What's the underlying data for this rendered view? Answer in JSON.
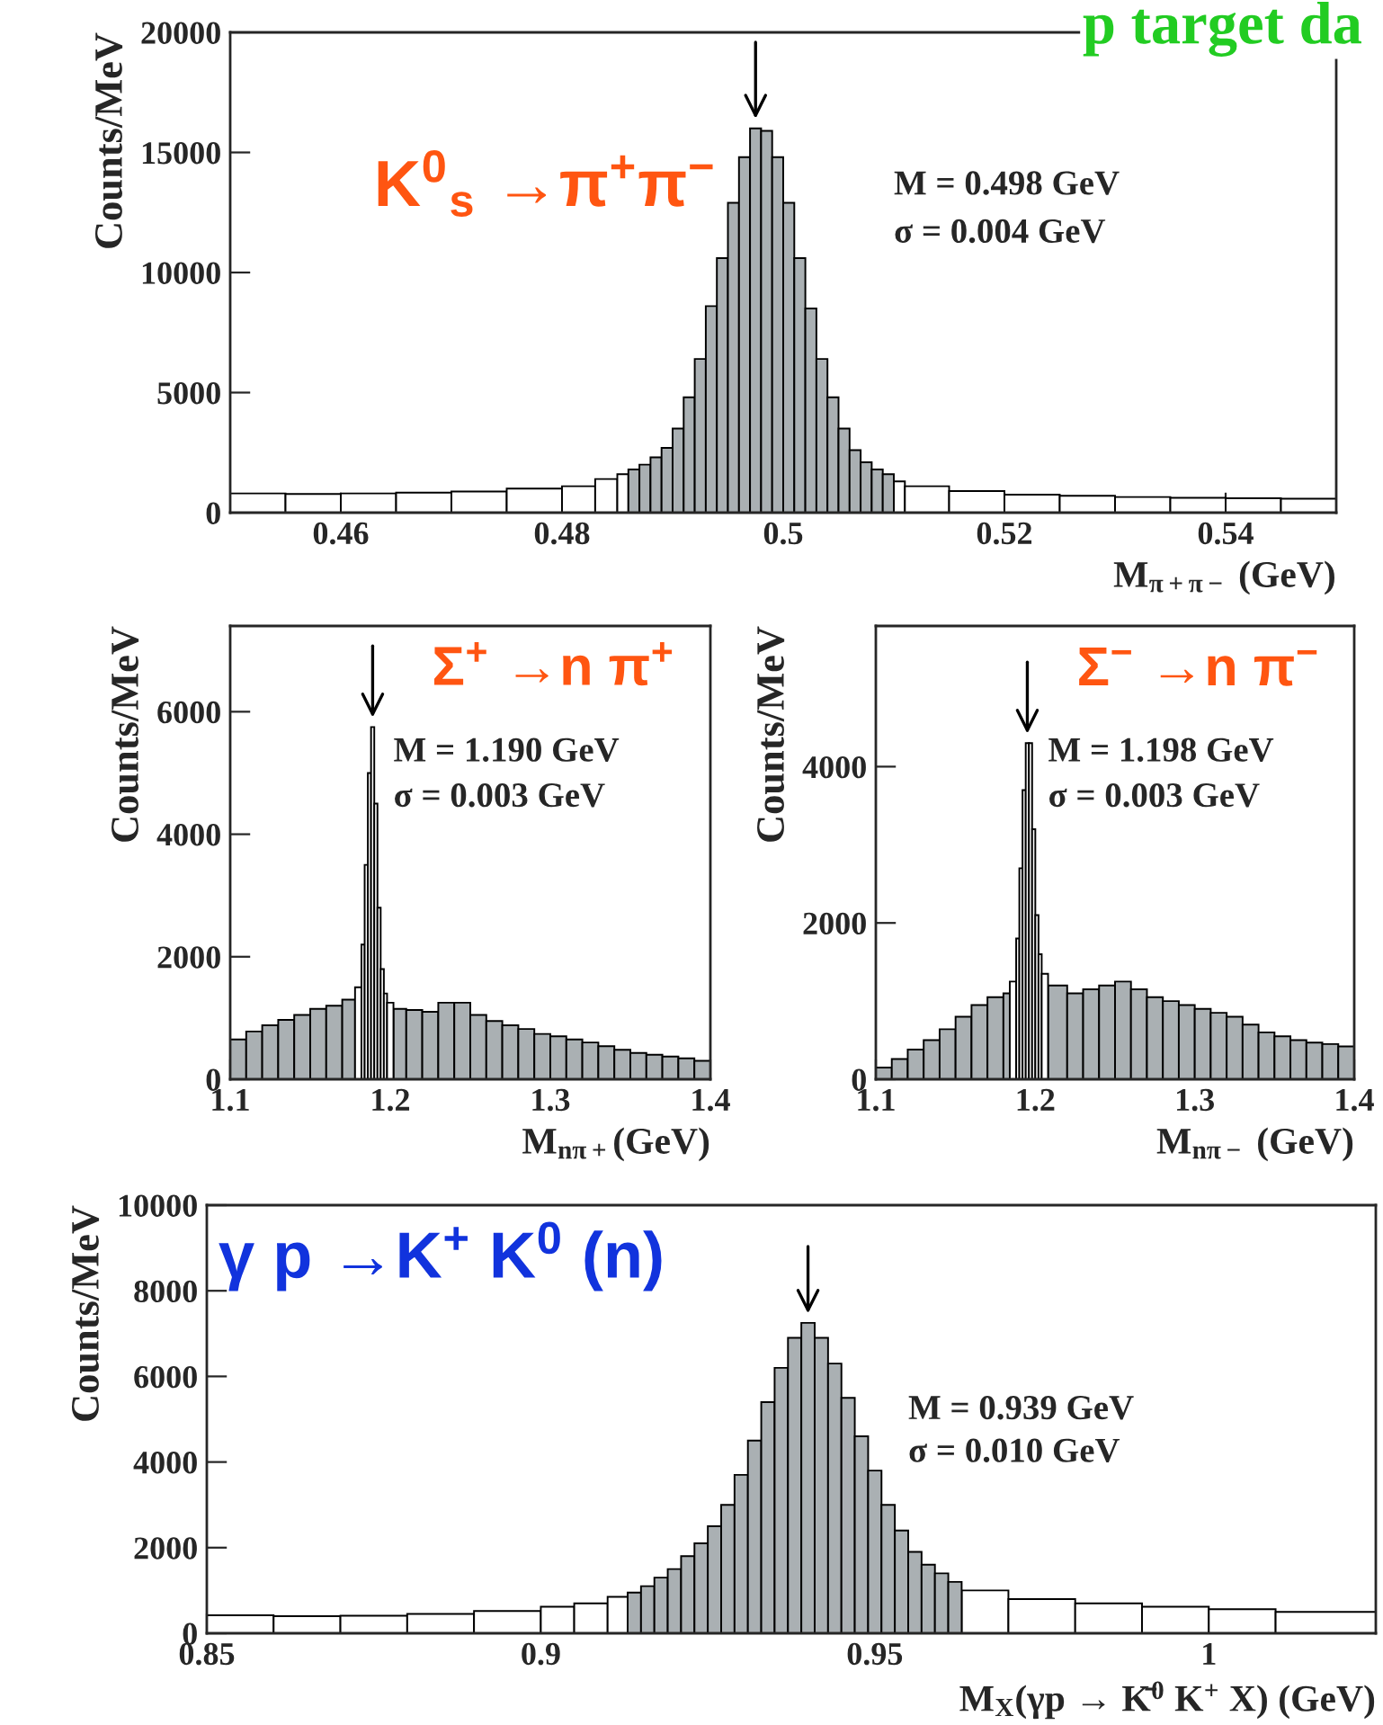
{
  "chart_data": [
    {
      "type": "histogram",
      "title": "p target da",
      "xlabel": "M$_{π+π−}$ (GeV)",
      "ylabel": "Counts/MeV",
      "bins": [
        0.45,
        0.455,
        0.46,
        0.465,
        0.47,
        0.475,
        0.48,
        0.483,
        0.485,
        0.486,
        0.487,
        0.488,
        0.489,
        0.49,
        0.491,
        0.492,
        0.493,
        0.494,
        0.495,
        0.496,
        0.497,
        0.498,
        0.499,
        0.5,
        0.501,
        0.502,
        0.503,
        0.504,
        0.505,
        0.506,
        0.507,
        0.508,
        0.509,
        0.51,
        0.511,
        0.515,
        0.52,
        0.525,
        0.53,
        0.535,
        0.54,
        0.545,
        0.55
      ],
      "series": [
        {
          "color": "#ffffff",
          "values": [
            800,
            780,
            800,
            830,
            880,
            1000,
            1100,
            1400,
            1600,
            null,
            null,
            null,
            null,
            null,
            null,
            null,
            null,
            null,
            null,
            null,
            null,
            null,
            null,
            null,
            null,
            null,
            null,
            null,
            null,
            null,
            null,
            null,
            null,
            1300,
            1100,
            900,
            750,
            700,
            650,
            620,
            600,
            580
          ]
        },
        {
          "color": "#aab0b3",
          "values": [
            null,
            null,
            null,
            null,
            null,
            null,
            null,
            null,
            null,
            1800,
            2000,
            2300,
            2700,
            3500,
            4800,
            6400,
            8600,
            10600,
            12900,
            14800,
            16000,
            15900,
            14800,
            12900,
            10600,
            8500,
            6400,
            4800,
            3500,
            2600,
            2100,
            1800,
            1600,
            null,
            null,
            null,
            null,
            null,
            null,
            null,
            null,
            null
          ]
        }
      ],
      "xlim": [
        0.45,
        0.55
      ],
      "xticks": [
        0.46,
        0.48,
        {
          "value": 0.5,
          "label": "0.5"
        },
        0.52,
        0.54
      ],
      "ylim": [
        0,
        20000
      ],
      "yticks": [
        0,
        5000,
        10000,
        15000,
        20000
      ],
      "annotations": [
        "K$^{0}$$_{s}$ →π$^{+}$π$^{−}$",
        "M = 0.498 GeV",
        "σ = 0.004 GeV"
      ]
    },
    {
      "type": "histogram",
      "xlabel": "M$_{nπ+}$(GeV)",
      "ylabel": "Counts/MeV",
      "bins": [
        1.1,
        1.11,
        1.12,
        1.13,
        1.14,
        1.15,
        1.16,
        1.17,
        1.178,
        1.182,
        1.184,
        1.186,
        1.188,
        1.19,
        1.192,
        1.194,
        1.196,
        1.198,
        1.202,
        1.21,
        1.22,
        1.23,
        1.24,
        1.25,
        1.26,
        1.27,
        1.28,
        1.29,
        1.3,
        1.31,
        1.32,
        1.33,
        1.34,
        1.35,
        1.36,
        1.37,
        1.38,
        1.39,
        1.4
      ],
      "series": [
        {
          "color": "#aab0b3",
          "values": [
            650,
            780,
            880,
            970,
            1050,
            1150,
            1200,
            1300,
            null,
            null,
            null,
            null,
            null,
            null,
            null,
            null,
            null,
            null,
            1150,
            1130,
            1100,
            1250,
            1250,
            1050,
            950,
            880,
            820,
            740,
            700,
            650,
            600,
            540,
            480,
            430,
            400,
            370,
            340,
            300
          ]
        },
        {
          "color": "#ffffff",
          "values": [
            null,
            null,
            null,
            null,
            null,
            null,
            null,
            null,
            1500,
            2200,
            3500,
            5000,
            5750,
            4500,
            2800,
            1800,
            1400,
            1250,
            null,
            null,
            null,
            null,
            null,
            null,
            null,
            null,
            null,
            null,
            null,
            null,
            null,
            null,
            null,
            null,
            null,
            null,
            null,
            null
          ]
        }
      ],
      "xlim": [
        1.1,
        1.4
      ],
      "xticks": [
        1.1,
        1.2,
        1.3,
        1.4
      ],
      "ylim": [
        0,
        7400
      ],
      "yticks": [
        0,
        2000,
        4000,
        6000
      ],
      "annotations": [
        "Σ$^{+}$ →n π$^{+}$",
        "M = 1.190 GeV",
        "σ = 0.003 GeV"
      ]
    },
    {
      "type": "histogram",
      "xlabel": "M$_{nπ−}$ (GeV)",
      "ylabel": "Counts/MeV",
      "bins": [
        1.1,
        1.11,
        1.12,
        1.13,
        1.14,
        1.15,
        1.16,
        1.17,
        1.18,
        1.184,
        1.188,
        1.19,
        1.192,
        1.194,
        1.196,
        1.198,
        1.2,
        1.202,
        1.204,
        1.208,
        1.22,
        1.23,
        1.24,
        1.25,
        1.26,
        1.27,
        1.28,
        1.29,
        1.3,
        1.31,
        1.32,
        1.33,
        1.34,
        1.35,
        1.36,
        1.37,
        1.38,
        1.39,
        1.4
      ],
      "series": [
        {
          "color": "#aab0b3",
          "values": [
            150,
            260,
            380,
            500,
            640,
            800,
            950,
            1050,
            1100,
            null,
            null,
            null,
            null,
            null,
            null,
            null,
            null,
            null,
            null,
            1200,
            1100,
            1150,
            1200,
            1250,
            1150,
            1050,
            1000,
            950,
            900,
            850,
            800,
            700,
            600,
            550,
            500,
            470,
            450,
            420
          ]
        },
        {
          "color": "#ffffff",
          "values": [
            null,
            null,
            null,
            null,
            null,
            null,
            null,
            null,
            null,
            1250,
            1800,
            2700,
            3700,
            4300,
            4300,
            3200,
            2100,
            1600,
            1350,
            null,
            null,
            null,
            null,
            null,
            null,
            null,
            null,
            null,
            null,
            null,
            null,
            null,
            null,
            null,
            null,
            null,
            null,
            null
          ]
        }
      ],
      "xlim": [
        1.1,
        1.4
      ],
      "xticks": [
        1.1,
        1.2,
        1.3,
        1.4
      ],
      "ylim": [
        0,
        5800
      ],
      "yticks": [
        0,
        2000,
        4000
      ],
      "annotations": [
        "Σ$^{−}$ →n π$^{−}$",
        "M = 1.198 GeV",
        "σ = 0.003 GeV"
      ]
    },
    {
      "type": "histogram",
      "xlabel": "M$_{X}$(γp → K̄$^{0}$ K$^{+}$ X) (GeV)",
      "ylabel": "Counts/MeV",
      "bins": [
        0.85,
        0.86,
        0.87,
        0.88,
        0.89,
        0.9,
        0.905,
        0.91,
        0.913,
        0.915,
        0.917,
        0.919,
        0.921,
        0.923,
        0.925,
        0.927,
        0.929,
        0.931,
        0.933,
        0.935,
        0.937,
        0.939,
        0.941,
        0.943,
        0.945,
        0.947,
        0.949,
        0.951,
        0.953,
        0.955,
        0.957,
        0.959,
        0.961,
        0.963,
        0.97,
        0.98,
        0.99,
        1.0,
        1.01,
        1.025
      ],
      "series": [
        {
          "color": "#ffffff",
          "values": [
            420,
            400,
            410,
            450,
            520,
            620,
            700,
            850,
            null,
            null,
            null,
            null,
            null,
            null,
            null,
            null,
            null,
            null,
            null,
            null,
            null,
            null,
            null,
            null,
            null,
            null,
            null,
            null,
            null,
            null,
            null,
            null,
            null,
            1000,
            800,
            700,
            620,
            560,
            500
          ]
        },
        {
          "color": "#aab0b3",
          "values": [
            null,
            null,
            null,
            null,
            null,
            null,
            null,
            null,
            950,
            1100,
            1300,
            1500,
            1800,
            2100,
            2500,
            3000,
            3700,
            4500,
            5400,
            6200,
            6900,
            7250,
            6900,
            6300,
            5500,
            4600,
            3800,
            3000,
            2400,
            1900,
            1600,
            1400,
            1200,
            null,
            null,
            null,
            null,
            null,
            null
          ]
        }
      ],
      "xlim": [
        0.85,
        1.025
      ],
      "xticks": [
        0.85,
        0.9,
        0.95,
        1
      ],
      "ylim": [
        0,
        10000
      ],
      "yticks": [
        0,
        2000,
        4000,
        6000,
        8000,
        10000
      ],
      "annotations": [
        "γ p →K$^{+}$ K$^{0}$ (n)",
        "M = 0.939 GeV",
        "σ = 0.010 GeV"
      ]
    }
  ]
}
